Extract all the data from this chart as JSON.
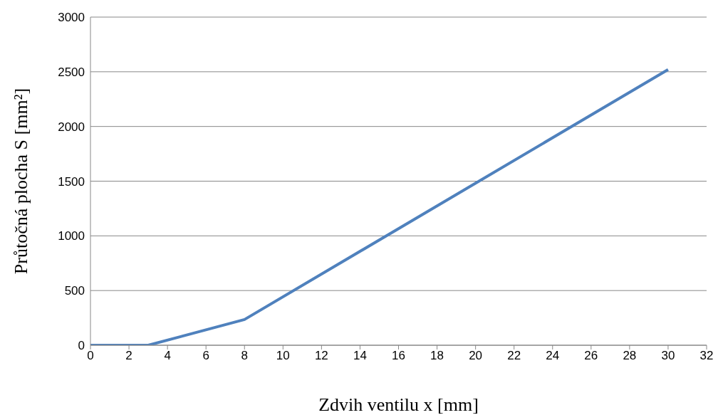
{
  "chart_data": {
    "type": "line",
    "xlabel": "Zdvih ventilu x [mm]",
    "ylabel": "Průtočná plocha S [mm²]",
    "series": [
      {
        "color": "#4f81bd",
        "x": [
          0,
          3,
          8,
          30
        ],
        "values": [
          0,
          0,
          235,
          2520
        ]
      }
    ],
    "xlim": [
      0,
      32
    ],
    "xticks": [
      0,
      2,
      4,
      6,
      8,
      10,
      12,
      14,
      16,
      18,
      20,
      22,
      24,
      26,
      28,
      30,
      32
    ],
    "ylim": [
      0,
      3000
    ],
    "yticks": [
      0,
      500,
      1000,
      1500,
      2000,
      2500,
      3000
    ],
    "grid": "y",
    "marker": "none",
    "line_style": "solid",
    "legend": false
  }
}
